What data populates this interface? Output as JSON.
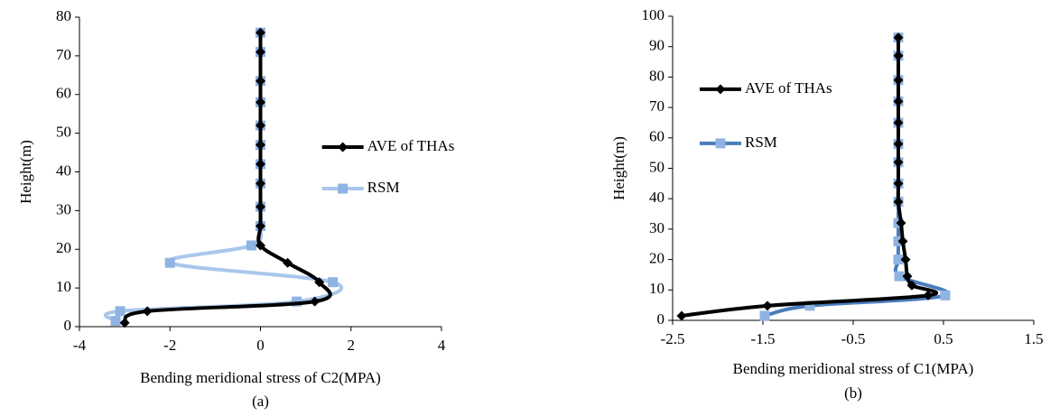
{
  "chart_data": [
    {
      "type": "line",
      "caption": "(a)",
      "xlabel": "Bending meridional stress of C2(MPA)",
      "ylabel": "Height(m)",
      "xlim": [
        -4,
        4
      ],
      "xticks": [
        -4,
        -2,
        0,
        2,
        4
      ],
      "ylim": [
        0,
        80
      ],
      "yticks": [
        0,
        10,
        20,
        30,
        40,
        50,
        60,
        70,
        80
      ],
      "legend_position": "center-right",
      "series": [
        {
          "name": "AVE of THAs",
          "color": "#000000",
          "marker": "diamond",
          "marker_color": "#000000",
          "x": [
            -3,
            -2.5,
            1.2,
            1.3,
            0.6,
            0,
            0,
            0,
            0,
            0,
            0,
            0,
            0,
            0,
            0,
            0
          ],
          "values": [
            1,
            4,
            6.5,
            11.5,
            16.5,
            21,
            26,
            31,
            37,
            42,
            47,
            52,
            58,
            63.5,
            71,
            76
          ]
        },
        {
          "name": "RSM",
          "color": "#a9c7eb",
          "marker": "square",
          "marker_color": "#8fb4e3",
          "x": [
            -3.2,
            -3.1,
            0.8,
            1.6,
            -2,
            -0.2,
            0,
            0,
            0,
            0,
            0,
            0,
            0,
            0,
            0,
            0
          ],
          "values": [
            1.5,
            4,
            6.5,
            11.5,
            16.5,
            21,
            26,
            31,
            37,
            42,
            47,
            52,
            58,
            63.5,
            71,
            76
          ]
        }
      ]
    },
    {
      "type": "line",
      "caption": "(b)",
      "xlabel": "Bending meridional stress of C1(MPA)",
      "ylabel": "Height(m)",
      "xlim": [
        -2.5,
        1.5
      ],
      "xticks": [
        -2.5,
        -1.5,
        -0.5,
        0.5,
        1.5
      ],
      "ylim": [
        0,
        100
      ],
      "yticks": [
        0,
        10,
        20,
        30,
        40,
        50,
        60,
        70,
        80,
        90,
        100
      ],
      "legend_position": "upper-left",
      "series": [
        {
          "name": "AVE of THAs",
          "color": "#000000",
          "marker": "diamond",
          "marker_color": "#000000",
          "x": [
            -2.4,
            -1.45,
            0.33,
            0.15,
            0.1,
            0.08,
            0.05,
            0.03,
            0,
            0,
            0,
            0,
            0,
            0,
            0,
            0,
            0
          ],
          "values": [
            1.5,
            4.8,
            8.2,
            11.5,
            14.5,
            20,
            26,
            32,
            39,
            45,
            52,
            58,
            65,
            72,
            79,
            87,
            93
          ]
        },
        {
          "name": "RSM",
          "color": "#4a7ebb",
          "marker": "square",
          "marker_color": "#8fb4e3",
          "x": [
            -1.48,
            -0.98,
            0.52,
            0.01,
            0,
            0,
            0,
            0,
            0,
            0,
            0,
            0,
            0,
            0,
            0,
            0
          ],
          "values": [
            1.5,
            4.8,
            8.2,
            14.5,
            20,
            26,
            32,
            39,
            45,
            52,
            58,
            65,
            72,
            79,
            87,
            93
          ]
        }
      ]
    }
  ]
}
